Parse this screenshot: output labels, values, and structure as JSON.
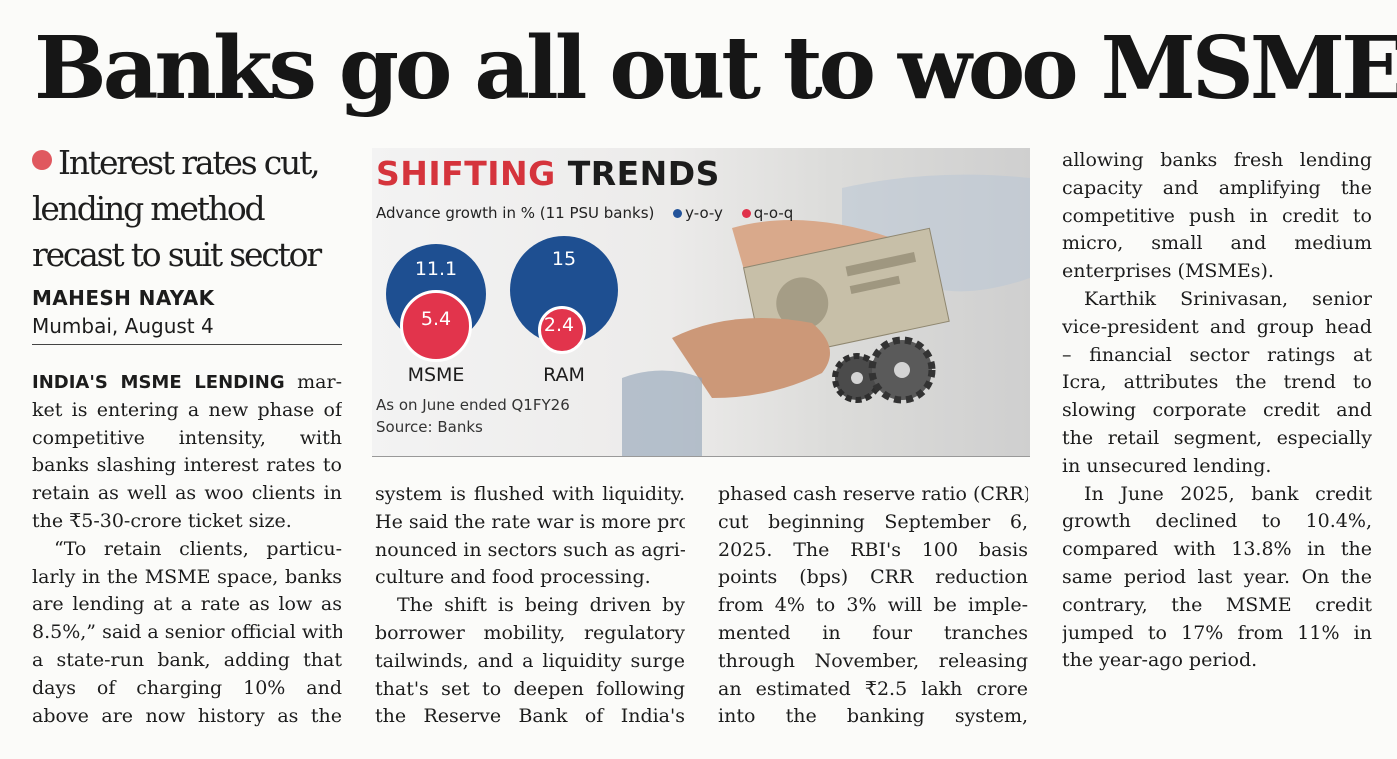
{
  "headline": "Banks go all out to woo MSMEs",
  "deck": [
    "Interest rates cut,",
    "lending method",
    "recast to suit sector"
  ],
  "byline": "MAHESH NAYAK",
  "dateline": "Mumbai, August 4",
  "col1": {
    "lead": "INDIA'S MSME LENDING",
    "lines": [
      "mar-",
      "ket is entering a new phase of",
      "competitive intensity, with",
      "banks slashing interest rates to",
      "retain as well as woo clients in",
      "the ₹5-30-crore ticket size.",
      "“To retain clients, particu-",
      "larly in the MSME space, banks",
      "are lending at a rate as low as",
      "8.5%,” said a senior official with",
      "a state-run bank, adding that",
      "days of charging 10% and",
      "above are now history as the"
    ]
  },
  "col2": [
    "system is flushed with liquidity.",
    "He said the rate war is more pro-",
    "nounced in sectors such as agri-",
    "culture and food processing.",
    "The shift is being driven by",
    "borrower mobility, regulatory",
    "tailwinds, and a liquidity surge",
    "that's set to deepen following",
    "the Reserve Bank of India's"
  ],
  "col3": [
    "phased cash reserve ratio (CRR)",
    "cut beginning September 6,",
    "2025. The RBI's 100 basis",
    "points (bps) CRR reduction",
    "from 4% to 3% will be imple-",
    "mented in four tranches",
    "through November, releasing",
    "an estimated ₹2.5 lakh crore",
    "into the banking system,"
  ],
  "col4": [
    "allowing banks fresh lending",
    "capacity and amplifying the",
    "competitive push in credit to",
    "micro, small and medium",
    "enterprises (MSMEs).",
    "Karthik Srinivasan, senior",
    "vice-president and group head",
    "– financial sector ratings at",
    "Icra, attributes the trend to",
    "slowing corporate credit and",
    "the retail segment, especially",
    "in unsecured lending.",
    "In June 2025, bank credit",
    "growth declined to 10.4%,",
    "compared with 13.8% in the",
    "same period last year. On the",
    "contrary, the MSME credit",
    "jumped to 17% from 11% in",
    "the year-ago period."
  ],
  "graphic": {
    "title_red": "SHIFTING",
    "title_dark": "TRENDS",
    "subtitle": "Advance growth in % (11 PSU banks)",
    "legend": {
      "yoy": "y-o-y",
      "qoq": "q-o-q"
    },
    "note": "As on June ended Q1FY26",
    "source": "Source: Banks",
    "colors": {
      "yoy": "#1e4f91",
      "qoq": "#e2344c",
      "title_accent": "#d5343c"
    }
  },
  "chart_data": {
    "type": "bubble",
    "title": "SHIFTING TRENDS",
    "subtitle": "Advance growth in % (11 PSU banks)",
    "categories": [
      "MSME",
      "RAM"
    ],
    "series": [
      {
        "name": "y-o-y",
        "values": [
          11.1,
          15
        ]
      },
      {
        "name": "q-o-q",
        "values": [
          5.4,
          2.4
        ]
      }
    ]
  }
}
